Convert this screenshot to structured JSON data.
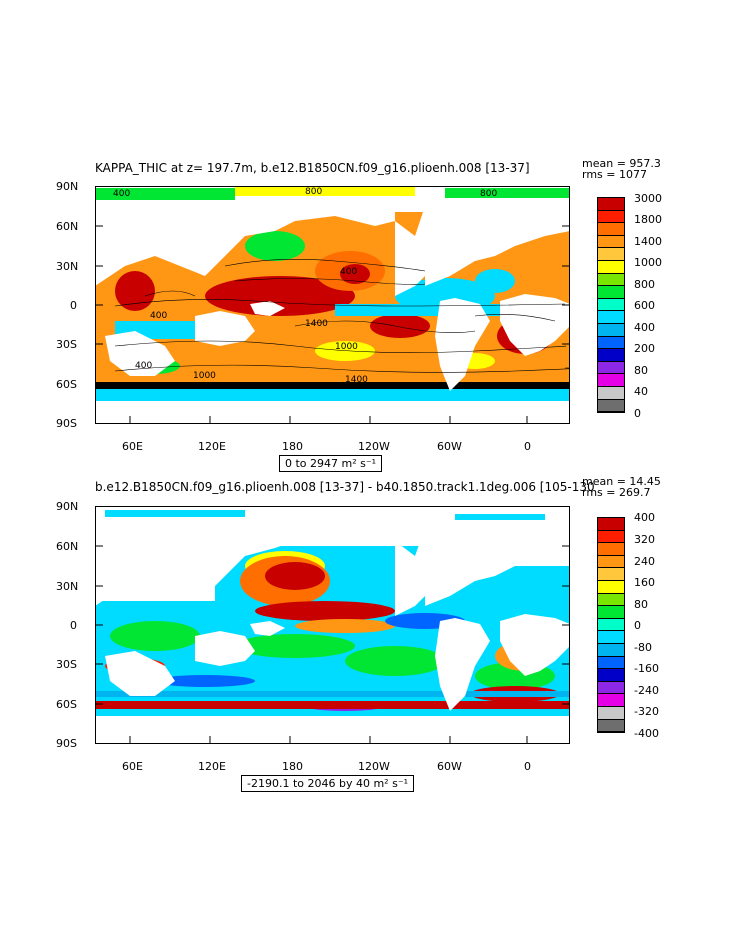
{
  "palette": [
    "#6e6e6e",
    "#c8c8c8",
    "#e600e6",
    "#8c28e6",
    "#0000c8",
    "#0064ff",
    "#00b4f0",
    "#00dcff",
    "#00ffc8",
    "#00e632",
    "#78e600",
    "#ffff00",
    "#ffc83c",
    "#ff9614",
    "#ff6e00",
    "#ff1e00",
    "#c80000"
  ],
  "land_color": "#ffffff",
  "map_grid": {
    "lat_labels": [
      "90N",
      "60N",
      "30N",
      "0",
      "30S",
      "60S",
      "90S"
    ],
    "lon_labels": [
      "60E",
      "120E",
      "180",
      "120W",
      "60W",
      "0"
    ]
  },
  "panels": [
    {
      "id": "top",
      "title": "KAPPA_THIC at z= 197.7m, b.e12.B1850CN.f09_g16.plioenh.008  [13-37]",
      "stats": {
        "mean": "mean = 957.3",
        "rms": "rms = 1077"
      },
      "range_text": "0 to 2947 m² s⁻¹",
      "colorbar_labels": [
        "3000",
        "1800",
        "1400",
        "1000",
        "800",
        "600",
        "400",
        "200",
        "80",
        "40",
        "0"
      ],
      "contour_labels": [
        "400",
        "800",
        "800",
        "400",
        "1400",
        "400",
        "1000",
        "1400",
        "1000",
        "400"
      ]
    },
    {
      "id": "bottom",
      "title": "b.e12.B1850CN.f09_g16.plioenh.008  [13-37]  -  b40.1850.track1.1deg.006  [105-130",
      "stats": {
        "mean": "mean = 14.45",
        "rms": "rms = 269.7"
      },
      "range_text": "-2190.1 to 2046 by 40 m² s⁻¹",
      "colorbar_labels": [
        "400",
        "320",
        "240",
        "160",
        "80",
        "0",
        "-80",
        "-160",
        "-240",
        "-320",
        "-400"
      ]
    }
  ]
}
